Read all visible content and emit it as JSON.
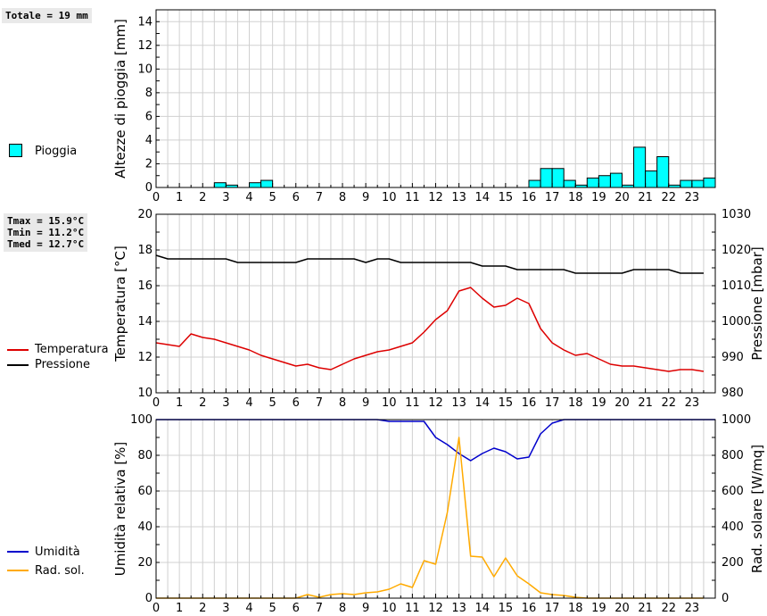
{
  "stats": {
    "totale": "Totale = 19 mm",
    "tmax": "Tmax = 15.9°C",
    "tmin": "Tmin = 11.2°C",
    "tmed": "Tmed = 12.7°C"
  },
  "legend": {
    "pioggia": "Pioggia",
    "temperatura": "Temperatura",
    "pressione": "Pressione",
    "umidita": "Umidità",
    "radsol": "Rad. sol."
  },
  "colors": {
    "rain": "#00ffff",
    "temperature": "#dd0000",
    "pressure": "#000000",
    "humidity": "#0000cc",
    "radiation": "#ffaa00",
    "grid": "#d0d0d0"
  },
  "chart_data": [
    {
      "type": "bar",
      "ylabel": "Altezze di pioggia [mm]",
      "xlim": [
        0,
        24
      ],
      "ylim": [
        0,
        15
      ],
      "yticks": [
        0,
        2,
        4,
        6,
        8,
        10,
        12,
        14
      ],
      "xticks": [
        "0",
        "1",
        "2",
        "3",
        "4",
        "5",
        "6",
        "7",
        "8",
        "9",
        "10",
        "11",
        "12",
        "13",
        "14",
        "15",
        "16",
        "17",
        "18",
        "19",
        "20",
        "21",
        "22",
        "23"
      ],
      "bar_width_h": 0.5,
      "series": [
        {
          "name": "Pioggia",
          "x": [
            2.5,
            3.0,
            4.0,
            4.5,
            16.0,
            16.5,
            17.0,
            17.5,
            18.0,
            18.5,
            19.0,
            19.5,
            20.0,
            20.5,
            21.0,
            21.5,
            22.0,
            22.5,
            23.0,
            23.5
          ],
          "values": [
            0.4,
            0.2,
            0.4,
            0.6,
            0.6,
            1.6,
            1.6,
            0.6,
            0.2,
            0.8,
            1.0,
            1.2,
            0.2,
            3.4,
            1.4,
            2.6,
            0.2,
            0.6,
            0.6,
            0.8
          ]
        }
      ],
      "grid": true
    },
    {
      "type": "line",
      "ylabel": "Temperatura [°C]",
      "y2label": "Pressione [mbar]",
      "xlim": [
        0,
        24
      ],
      "ylim": [
        10,
        20
      ],
      "y2lim": [
        980,
        1030
      ],
      "yticks": [
        10,
        12,
        14,
        16,
        18,
        20
      ],
      "y2ticks": [
        980,
        990,
        1000,
        1010,
        1020,
        1030
      ],
      "xticks": [
        "0",
        "1",
        "2",
        "3",
        "4",
        "5",
        "6",
        "7",
        "8",
        "9",
        "10",
        "11",
        "12",
        "13",
        "14",
        "15",
        "16",
        "17",
        "18",
        "19",
        "20",
        "21",
        "22",
        "23"
      ],
      "series": [
        {
          "name": "Temperatura",
          "axis": "left",
          "x": [
            0,
            0.5,
            1,
            1.5,
            2,
            2.5,
            3,
            3.5,
            4,
            4.5,
            5,
            5.5,
            6,
            6.5,
            7,
            7.5,
            8,
            8.5,
            9,
            9.5,
            10,
            10.5,
            11,
            11.5,
            12,
            12.5,
            13,
            13.5,
            14,
            14.5,
            15,
            15.5,
            16,
            16.5,
            17,
            17.5,
            18,
            18.5,
            19,
            19.5,
            20,
            20.5,
            21,
            21.5,
            22,
            22.5,
            23,
            23.5
          ],
          "values": [
            12.8,
            12.7,
            12.6,
            13.3,
            13.1,
            13.0,
            12.8,
            12.6,
            12.4,
            12.1,
            11.9,
            11.7,
            11.5,
            11.6,
            11.4,
            11.3,
            11.6,
            11.9,
            12.1,
            12.3,
            12.4,
            12.6,
            12.8,
            13.4,
            14.1,
            14.6,
            15.7,
            15.9,
            15.3,
            14.8,
            14.9,
            15.3,
            15.0,
            13.6,
            12.8,
            12.4,
            12.1,
            12.2,
            11.9,
            11.6,
            11.5,
            11.5,
            11.4,
            11.3,
            11.2,
            11.3,
            11.3,
            11.2
          ]
        },
        {
          "name": "Pressione",
          "axis": "right",
          "x": [
            0,
            0.5,
            1,
            1.5,
            2,
            2.5,
            3,
            3.5,
            4,
            4.5,
            5,
            5.5,
            6,
            6.5,
            7,
            7.5,
            8,
            8.5,
            9,
            9.5,
            10,
            10.5,
            11,
            11.5,
            12,
            12.5,
            13,
            13.5,
            14,
            14.5,
            15,
            15.5,
            16,
            16.5,
            17,
            17.5,
            18,
            18.5,
            19,
            19.5,
            20,
            20.5,
            21,
            21.5,
            22,
            22.5,
            23,
            23.5
          ],
          "values": [
            1018.5,
            1017.5,
            1017.5,
            1017.5,
            1017.5,
            1017.5,
            1017.5,
            1016.5,
            1016.5,
            1016.5,
            1016.5,
            1016.5,
            1016.5,
            1017.5,
            1017.5,
            1017.5,
            1017.5,
            1017.5,
            1016.5,
            1017.5,
            1017.5,
            1016.5,
            1016.5,
            1016.5,
            1016.5,
            1016.5,
            1016.5,
            1016.5,
            1015.5,
            1015.5,
            1015.5,
            1014.5,
            1014.5,
            1014.5,
            1014.5,
            1014.5,
            1013.5,
            1013.5,
            1013.5,
            1013.5,
            1013.5,
            1014.5,
            1014.5,
            1014.5,
            1014.5,
            1013.5,
            1013.5,
            1013.5
          ]
        }
      ],
      "grid": true
    },
    {
      "type": "line",
      "ylabel": "Umidità relativa [%]",
      "y2label": "Rad. solare [W/mq]",
      "xlim": [
        0,
        24
      ],
      "ylim": [
        0,
        100
      ],
      "y2lim": [
        0,
        1000
      ],
      "yticks": [
        0,
        20,
        40,
        60,
        80,
        100
      ],
      "y2ticks": [
        0,
        200,
        400,
        600,
        800,
        1000
      ],
      "xticks": [
        "0",
        "1",
        "2",
        "3",
        "4",
        "5",
        "6",
        "7",
        "8",
        "9",
        "10",
        "11",
        "12",
        "13",
        "14",
        "15",
        "16",
        "17",
        "18",
        "19",
        "20",
        "21",
        "22",
        "23"
      ],
      "series": [
        {
          "name": "Umidità",
          "axis": "left",
          "x": [
            0,
            9.5,
            10,
            11,
            11.5,
            12,
            12.5,
            13,
            13.5,
            14,
            14.5,
            15,
            15.5,
            16,
            16.5,
            17,
            17.5,
            24
          ],
          "values": [
            100,
            100,
            99,
            99,
            99,
            90,
            86,
            81,
            77,
            81,
            84,
            82,
            78,
            79,
            92,
            98,
            100,
            100
          ]
        },
        {
          "name": "Rad. sol.",
          "axis": "right",
          "x": [
            0,
            6,
            6.5,
            7,
            7.5,
            8,
            8.5,
            9,
            9.5,
            10,
            10.5,
            11,
            11.5,
            12,
            12.5,
            13,
            13.5,
            14,
            14.5,
            15,
            15.5,
            16,
            16.5,
            17,
            17.5,
            18,
            18.5,
            23.5
          ],
          "values": [
            0,
            0,
            20,
            5,
            20,
            25,
            20,
            30,
            35,
            50,
            80,
            60,
            210,
            190,
            480,
            900,
            235,
            230,
            120,
            225,
            125,
            80,
            30,
            20,
            15,
            5,
            0,
            0
          ]
        }
      ],
      "grid": true
    }
  ]
}
